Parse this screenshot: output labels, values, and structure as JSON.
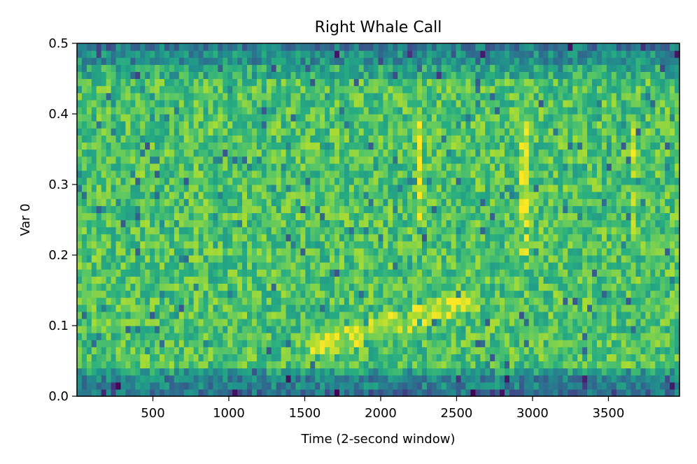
{
  "chart_data": {
    "type": "heatmap",
    "title": "Right Whale Call",
    "xlabel": "Time (2-second window)",
    "ylabel": "Var 0",
    "xlim": [
      0,
      3968
    ],
    "ylim": [
      0,
      0.5
    ],
    "x_ticks": [
      500,
      1000,
      1500,
      2000,
      2500,
      3000,
      3500
    ],
    "y_ticks": [
      "0.0",
      "0.1",
      "0.2",
      "0.3",
      "0.4",
      "0.5"
    ],
    "colormap": "viridis",
    "grid": false,
    "legend": "none",
    "n_time_bins": 124,
    "n_freq_bins": 50,
    "call_trace": [
      {
        "t": 1500,
        "f": 0.065
      },
      {
        "t": 1750,
        "f": 0.08
      },
      {
        "t": 2000,
        "f": 0.1
      },
      {
        "t": 2200,
        "f": 0.11
      },
      {
        "t": 2450,
        "f": 0.13
      },
      {
        "t": 2650,
        "f": 0.14
      }
    ],
    "vertical_streaks": [
      {
        "t": 2250,
        "f_range": [
          0.22,
          0.39
        ]
      },
      {
        "t": 2950,
        "f_range": [
          0.2,
          0.39
        ]
      },
      {
        "t": 3660,
        "f_range": [
          0.22,
          0.38
        ]
      }
    ]
  }
}
